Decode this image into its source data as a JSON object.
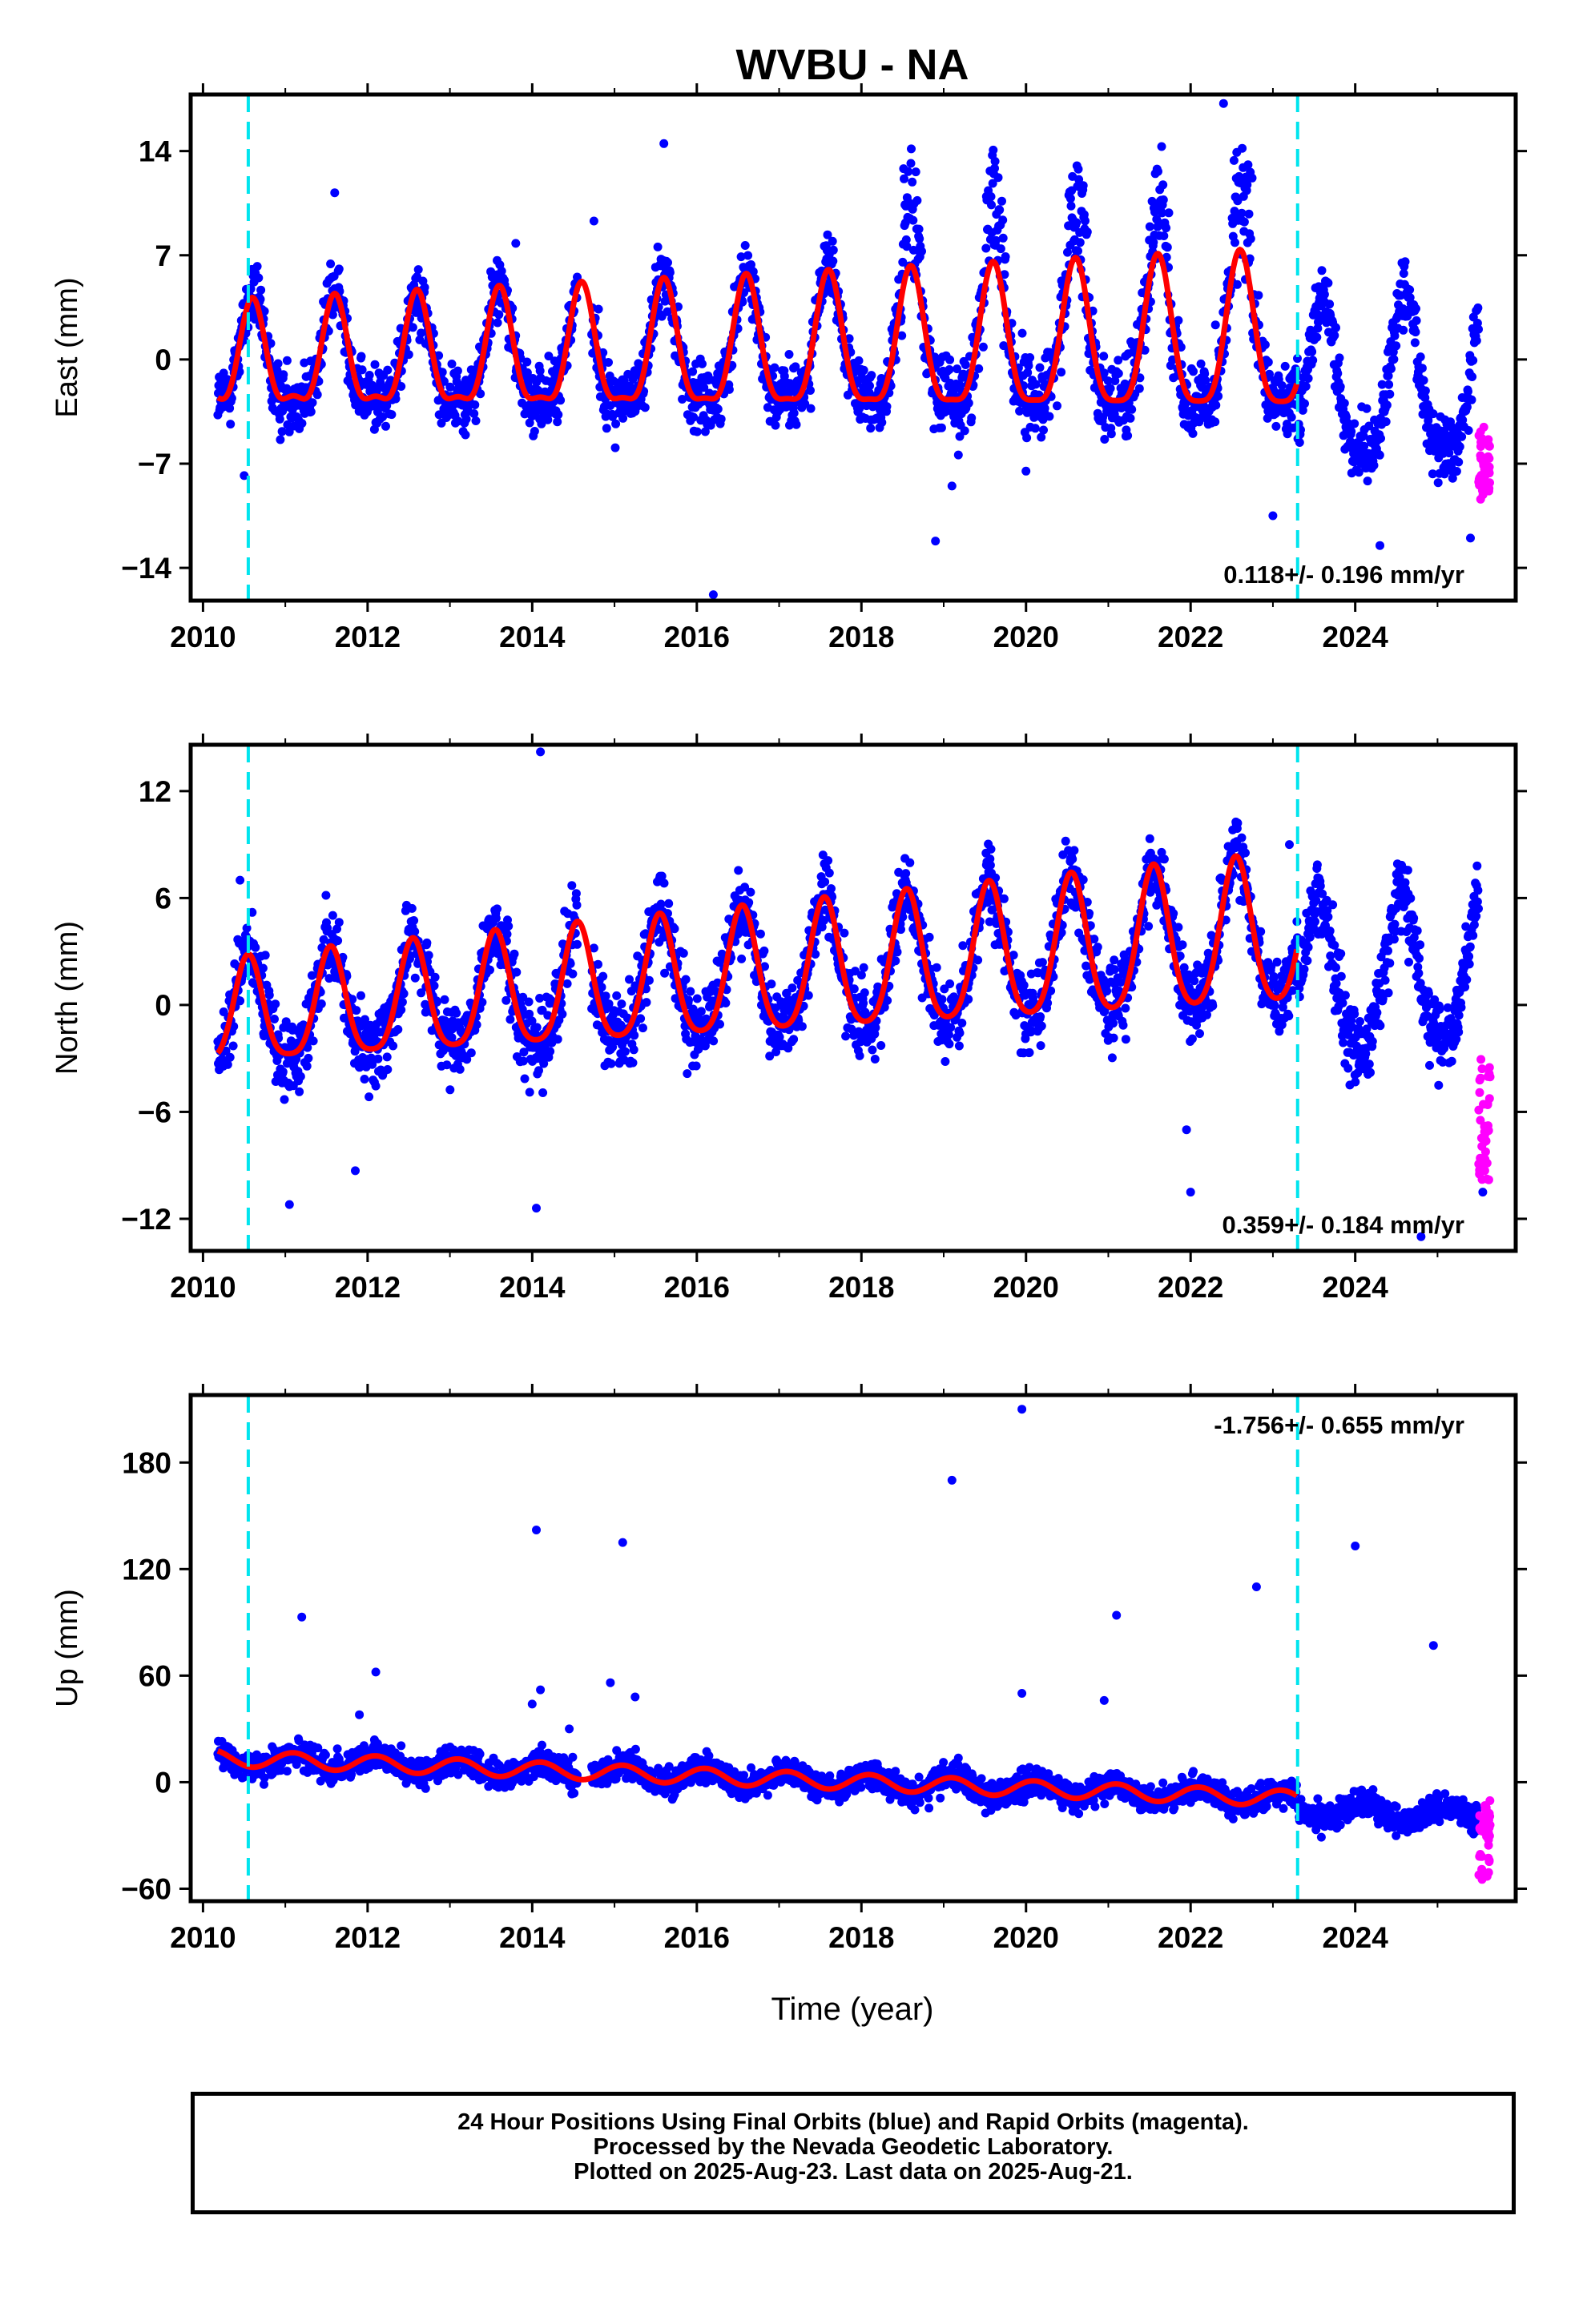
{
  "title": "WVBU - NA",
  "xlabel": "Time (year)",
  "footer": {
    "line1": "24 Hour Positions Using Final Orbits (blue) and Rapid Orbits (magenta).",
    "line2": "Processed by the Nevada Geodetic Laboratory.",
    "line3": "Plotted on 2025-Aug-23. Last data on 2025-Aug-21."
  },
  "colors": {
    "final_points": "#0000ff",
    "rapid_points": "#ff00ff",
    "model_line": "#ff0000",
    "event_lines": "#00e5ee"
  },
  "chart_data": [
    {
      "type": "scatter",
      "panel": "east",
      "ylabel": "East (mm)",
      "rate_label": "0.118+/- 0.196 mm/yr",
      "rate_position": "bottom-right",
      "xlim": [
        2009.85,
        2025.95
      ],
      "ylim": [
        -16.2,
        17.8
      ],
      "x_ticks": [
        "2010",
        "2012",
        "2014",
        "2016",
        "2018",
        "2020",
        "2022",
        "2024"
      ],
      "y_ticks": [
        "14",
        "7",
        "0",
        "-7",
        "-14"
      ],
      "y_tick_values": [
        14,
        7,
        0,
        -7,
        -14
      ],
      "event_lines_x": [
        2010.55,
        2023.3
      ],
      "grid": false,
      "series": [
        {
          "values_kind": "final",
          "model": {
            "offset": -0.4,
            "rate": 0.118,
            "annual": 3.2,
            "annual_phase_peak": 0.6,
            "semiannual": 1.2,
            "growth": 0.15,
            "after_2018_amp": 5.5,
            "step_2023": -3.2
          },
          "outliers": [
            [
              2010.5,
              -7.8
            ],
            [
              2011.6,
              11.2
            ],
            [
              2013.8,
              7.8
            ],
            [
              2014.75,
              9.3
            ],
            [
              2015.6,
              14.5
            ],
            [
              2016.2,
              -15.8
            ],
            [
              2018.9,
              -12.2
            ],
            [
              2019.1,
              -8.5
            ],
            [
              2020.0,
              -7.5
            ],
            [
              2022.4,
              17.2
            ],
            [
              2023.0,
              -10.5
            ],
            [
              2024.3,
              -12.5
            ],
            [
              2025.4,
              -12.0
            ]
          ]
        },
        {
          "values_kind": "rapid",
          "x_range": [
            2025.5,
            2025.64
          ],
          "y_range": [
            -9.5,
            -4.5
          ]
        }
      ]
    },
    {
      "type": "scatter",
      "panel": "north",
      "ylabel": "North (mm)",
      "rate_label": "0.359+/- 0.184 mm/yr",
      "rate_position": "bottom-right",
      "xlim": [
        2009.85,
        2025.95
      ],
      "ylim": [
        -13.8,
        14.6
      ],
      "x_ticks": [
        "2010",
        "2012",
        "2014",
        "2016",
        "2018",
        "2020",
        "2022",
        "2024"
      ],
      "y_ticks": [
        "12",
        "6",
        "0",
        "-6",
        "-12"
      ],
      "y_tick_values": [
        12,
        6,
        0,
        -6,
        -12
      ],
      "event_lines_x": [
        2010.55,
        2023.3
      ],
      "grid": false,
      "series": [
        {
          "values_kind": "final",
          "model": {
            "offset": -0.8,
            "rate": 0.359,
            "annual": 2.8,
            "annual_phase_peak": 0.55,
            "semiannual": 0.6,
            "growth": 0.1,
            "step_2023": -3.0
          },
          "outliers": [
            [
              2010.45,
              7.0
            ],
            [
              2011.05,
              -11.2
            ],
            [
              2011.85,
              -9.3
            ],
            [
              2014.1,
              14.2
            ],
            [
              2014.05,
              -11.4
            ],
            [
              2021.95,
              -7.0
            ],
            [
              2022.0,
              -10.5
            ],
            [
              2023.2,
              9.0
            ],
            [
              2024.8,
              -13.0
            ],
            [
              2025.55,
              -10.5
            ]
          ]
        },
        {
          "values_kind": "rapid",
          "x_range": [
            2025.5,
            2025.64
          ],
          "y_range": [
            -10.8,
            -2.5
          ]
        }
      ]
    },
    {
      "type": "scatter",
      "panel": "up",
      "ylabel": "Up (mm)",
      "rate_label": "-1.756+/- 0.655 mm/yr",
      "rate_position": "top-right",
      "xlim": [
        2009.85,
        2025.95
      ],
      "ylim": [
        -67,
        218
      ],
      "x_ticks": [
        "2010",
        "2012",
        "2014",
        "2016",
        "2018",
        "2020",
        "2022",
        "2024"
      ],
      "y_ticks": [
        "180",
        "120",
        "60",
        "0",
        "-60"
      ],
      "y_tick_values": [
        180,
        120,
        60,
        0,
        -60
      ],
      "event_lines_x": [
        2010.55,
        2023.3
      ],
      "grid": false,
      "series": [
        {
          "values_kind": "final",
          "model": {
            "offset": 14,
            "rate": -1.756,
            "annual": 4.5,
            "annual_phase_peak": 0.1,
            "semiannual": 0,
            "growth": 0,
            "step_2023": -6.0
          },
          "outliers": [
            [
              2011.2,
              93
            ],
            [
              2011.9,
              38
            ],
            [
              2012.1,
              62
            ],
            [
              2014.05,
              142
            ],
            [
              2014.1,
              52
            ],
            [
              2014.0,
              44
            ],
            [
              2014.45,
              30
            ],
            [
              2014.95,
              56
            ],
            [
              2015.1,
              135
            ],
            [
              2015.25,
              48
            ],
            [
              2019.1,
              170
            ],
            [
              2019.95,
              210
            ],
            [
              2019.95,
              50
            ],
            [
              2020.95,
              46
            ],
            [
              2021.1,
              94
            ],
            [
              2022.8,
              110
            ],
            [
              2024.0,
              133
            ],
            [
              2024.95,
              77
            ]
          ]
        },
        {
          "values_kind": "rapid",
          "x_range": [
            2025.5,
            2025.64
          ],
          "y_range": [
            -55,
            -10
          ]
        }
      ]
    }
  ]
}
